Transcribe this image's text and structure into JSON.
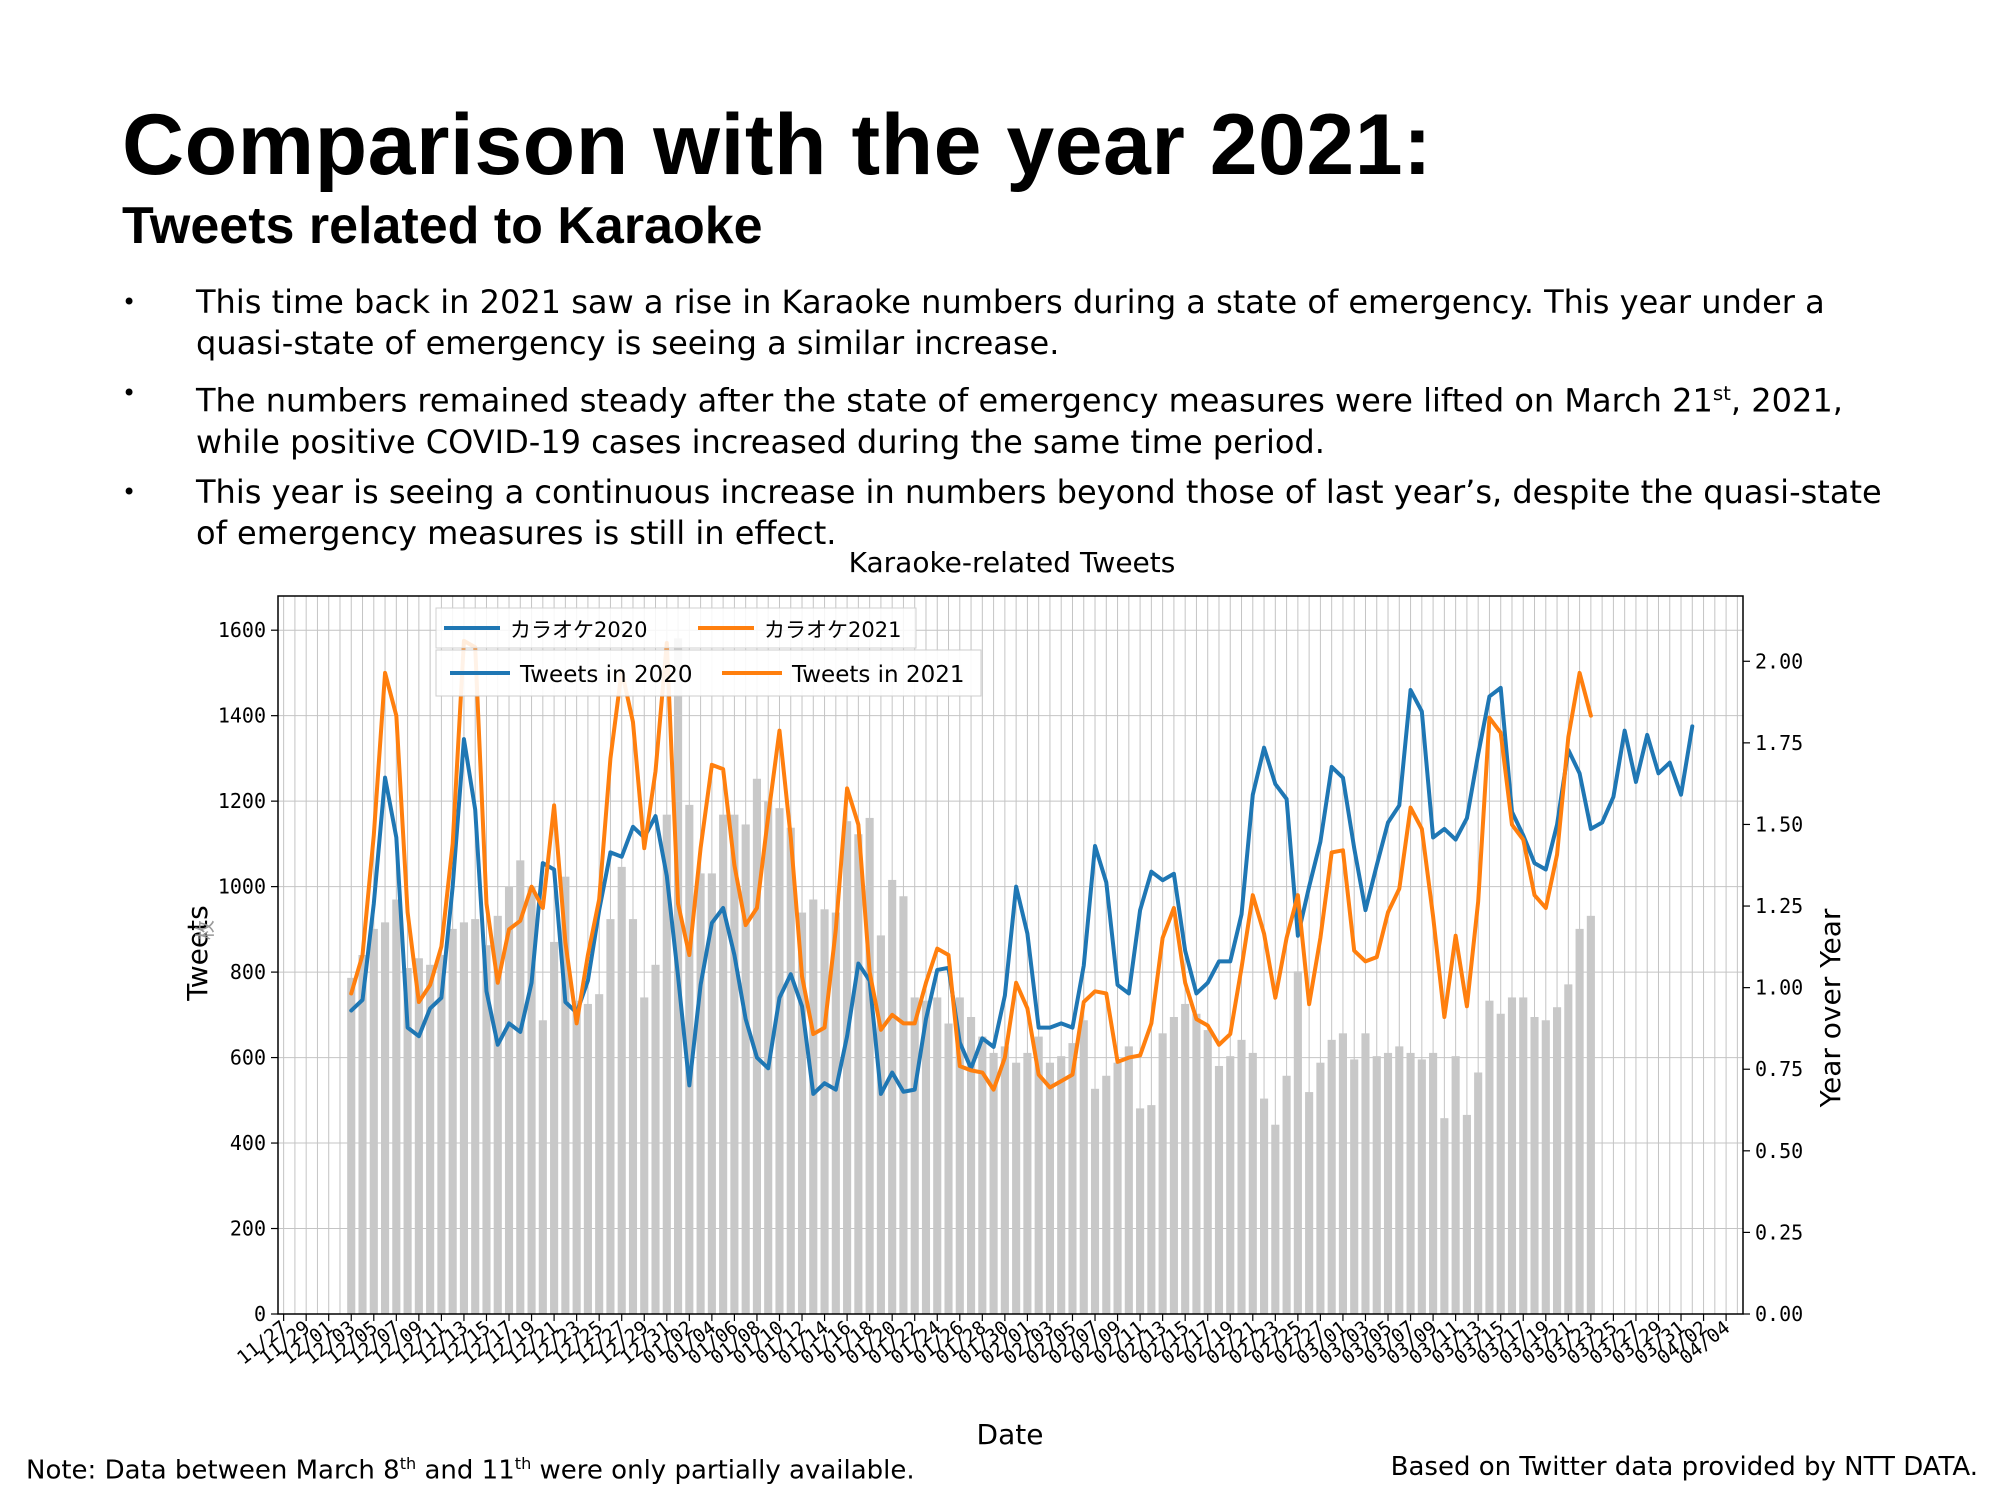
{
  "page": {
    "title": "Comparison with the year 2021:",
    "subtitle": "Tweets related to Karaoke",
    "bullets": [
      {
        "text": "This time back in 2021 saw a rise in Karaoke numbers during a state of emergency. This year under a quasi-state of emergency is seeing a similar increase."
      },
      {
        "before": "The numbers remained steady after the state of emergency measures were lifted on March 21",
        "sup": "st",
        "after": ", 2021, while positive COVID-19 cases increased during the same time period."
      },
      {
        "text": "This year is seeing a continuous increase in numbers beyond those of last year’s, despite the quasi-state of emergency measures is still in effect."
      }
    ],
    "bullet_symbol": "•",
    "note": {
      "before": "Note: Data between March 8",
      "sup1": "th",
      "middle": " and 11",
      "sup2": "th",
      "after": " were only partially available."
    },
    "credit": "Based on Twitter data provided by NTT DATA."
  },
  "chart_data": {
    "type": "line",
    "title": "Karaoke-related Tweets",
    "xlabel": "Date",
    "ylabel": "Tweets",
    "ylabel_faded": "枚",
    "y2label": "Year over Year",
    "ylim": [
      0,
      1680
    ],
    "y2lim": [
      0,
      2.2
    ],
    "yticks": [
      0,
      200,
      400,
      600,
      800,
      1000,
      1200,
      1400,
      1600
    ],
    "y2ticks": [
      "0.00",
      "0.25",
      "0.50",
      "0.75",
      "1.00",
      "1.25",
      "1.50",
      "1.75",
      "2.00"
    ],
    "grid": true,
    "legend_placement": "top-left",
    "legend_japanese": [
      "カラオケ2020",
      "カラオケ2021"
    ],
    "x_start_index": 6,
    "xtick_labels": [
      "11/27",
      "11/29",
      "12/01",
      "12/03",
      "12/05",
      "12/07",
      "12/09",
      "12/11",
      "12/13",
      "12/15",
      "12/17",
      "12/19",
      "12/21",
      "12/23",
      "12/25",
      "12/27",
      "12/29",
      "12/31",
      "01/02",
      "01/04",
      "01/06",
      "01/08",
      "01/10",
      "01/12",
      "01/14",
      "01/16",
      "01/18",
      "01/20",
      "01/22",
      "01/24",
      "01/26",
      "01/28",
      "01/30",
      "02/01",
      "02/03",
      "02/05",
      "02/07",
      "02/09",
      "02/11",
      "02/13",
      "02/15",
      "02/17",
      "02/19",
      "02/21",
      "02/23",
      "02/25",
      "02/27",
      "03/01",
      "03/03",
      "03/05",
      "03/07",
      "03/09",
      "03/11",
      "03/13",
      "03/15",
      "03/17",
      "03/19",
      "03/21",
      "03/23",
      "03/25",
      "03/27",
      "03/29",
      "03/31",
      "04/02",
      "04/04"
    ],
    "series": [
      {
        "name": "Tweets in 2020",
        "color": "#1f77b4",
        "values": [
          710,
          735,
          960,
          1255,
          1115,
          670,
          650,
          715,
          740,
          1000,
          1345,
          1180,
          755,
          630,
          680,
          660,
          775,
          1055,
          1040,
          730,
          705,
          780,
          945,
          1080,
          1070,
          1140,
          1115,
          1165,
          1025,
          790,
          535,
          770,
          915,
          950,
          840,
          690,
          600,
          575,
          740,
          795,
          720,
          515,
          540,
          525,
          650,
          820,
          780,
          515,
          565,
          520,
          525,
          690,
          805,
          810,
          635,
          575,
          645,
          625,
          745,
          1000,
          890,
          670,
          670,
          680,
          670,
          815,
          1095,
          1010,
          770,
          750,
          945,
          1035,
          1015,
          1030,
          850,
          750,
          775,
          825,
          825,
          935,
          1215,
          1325,
          1240,
          1205,
          885,
          1000,
          1105,
          1280,
          1255,
          1090,
          945,
          1050,
          1150,
          1190,
          1460,
          1410,
          1115,
          1135,
          1110,
          1160,
          1310,
          1445,
          1465,
          1175,
          1120,
          1055,
          1040,
          1145,
          1320,
          1265,
          1135,
          1150,
          1210,
          1365,
          1245,
          1355,
          1265,
          1290,
          1215,
          1375
        ]
      },
      {
        "name": "Tweets in 2021",
        "color": "#ff7f0e",
        "values": [
          750,
          840,
          1120,
          1500,
          1400,
          940,
          730,
          770,
          860,
          1100,
          1575,
          1560,
          960,
          775,
          900,
          920,
          1000,
          950,
          1190,
          870,
          680,
          840,
          970,
          1300,
          1505,
          1385,
          1090,
          1270,
          1570,
          960,
          840,
          1090,
          1285,
          1275,
          1050,
          910,
          950,
          1165,
          1365,
          1115,
          790,
          655,
          670,
          900,
          1230,
          1145,
          800,
          665,
          700,
          680,
          680,
          775,
          855,
          840,
          580,
          570,
          565,
          525,
          600,
          775,
          715,
          560,
          530,
          545,
          560,
          730,
          755,
          750,
          590,
          600,
          605,
          680,
          880,
          950,
          775,
          690,
          675,
          630,
          655,
          810,
          980,
          890,
          740,
          880,
          980,
          725,
          880,
          1080,
          1085,
          850,
          825,
          835,
          940,
          995,
          1185,
          1135,
          930,
          695,
          885,
          720,
          965,
          1395,
          1360,
          1145,
          1110,
          980,
          950,
          1075,
          1350,
          1500,
          1400
        ]
      },
      {
        "name": "Year over Year",
        "axis": "right",
        "color": "#c8c8c8",
        "values": [
          1.03,
          1.1,
          1.18,
          1.2,
          1.27,
          1.06,
          1.09,
          1.07,
          1.1,
          1.18,
          1.2,
          1.21,
          1.13,
          1.22,
          1.31,
          1.39,
          1.31,
          0.9,
          1.14,
          1.34,
          0.96,
          0.95,
          0.98,
          1.21,
          1.37,
          1.21,
          0.97,
          1.07,
          1.53,
          2.07,
          1.56,
          1.35,
          1.35,
          1.53,
          1.53,
          1.5,
          1.64,
          1.57,
          1.55,
          1.49,
          1.23,
          1.27,
          1.24,
          1.23,
          1.51,
          1.47,
          1.52,
          1.16,
          1.33,
          1.28,
          0.97,
          0.96,
          0.97,
          0.89,
          0.97,
          0.91,
          0.85,
          0.8,
          0.82,
          0.77,
          0.8,
          0.85,
          0.77,
          0.79,
          0.83,
          0.9,
          0.69,
          0.73,
          0.77,
          0.82,
          0.63,
          0.64,
          0.86,
          0.91,
          0.95,
          0.92,
          0.87,
          0.76,
          0.79,
          0.84,
          0.8,
          0.66,
          0.58,
          0.73,
          1.05,
          0.68,
          0.77,
          0.84,
          0.86,
          0.78,
          0.86,
          0.79,
          0.8,
          0.82,
          0.8,
          0.78,
          0.8,
          0.6,
          0.79,
          0.61,
          0.74,
          0.96,
          0.92,
          0.97,
          0.97,
          0.91,
          0.9,
          0.94,
          1.01,
          1.18,
          1.22
        ]
      }
    ]
  }
}
